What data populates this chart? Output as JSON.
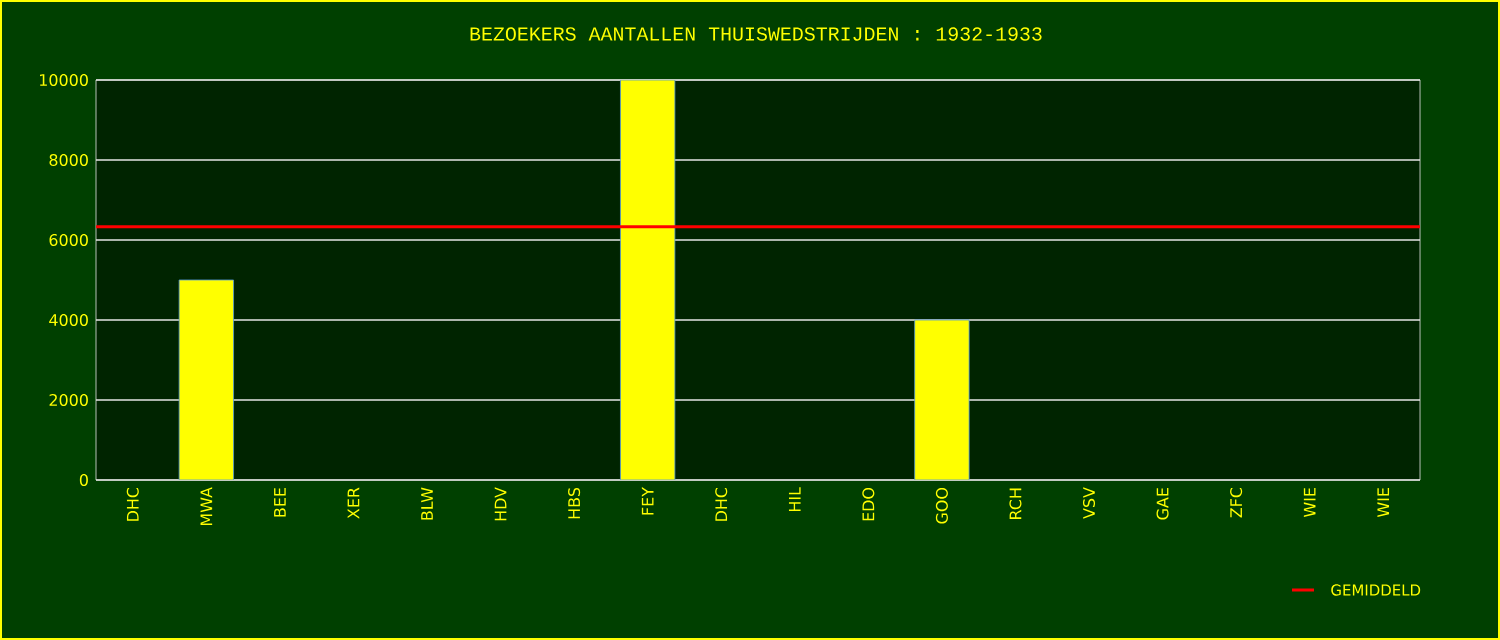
{
  "chart_data": {
    "type": "bar",
    "title": "BEZOEKERS AANTALLEN THUISWEDSTRIJDEN : 1932-1933",
    "categories": [
      "DHC",
      "MWA",
      "BEE",
      "XER",
      "BLW",
      "HDV",
      "HBS",
      "FEY",
      "DHC",
      "HIL",
      "EDO",
      "GOO",
      "RCH",
      "VSV",
      "GAE",
      "ZFC",
      "WIE",
      "WIE"
    ],
    "values": [
      null,
      5000,
      null,
      null,
      null,
      null,
      null,
      10000,
      null,
      null,
      null,
      4000,
      null,
      null,
      null,
      null,
      null,
      null
    ],
    "color": "#ffff00",
    "ylim": [
      0,
      10000
    ],
    "yticks": [
      0,
      2000,
      4000,
      6000,
      8000,
      10000
    ],
    "grid": "y",
    "ref_lines": [
      {
        "axis": "y",
        "value": 6333,
        "label": "GEMIDDELD",
        "color": "#ff0000"
      }
    ]
  }
}
